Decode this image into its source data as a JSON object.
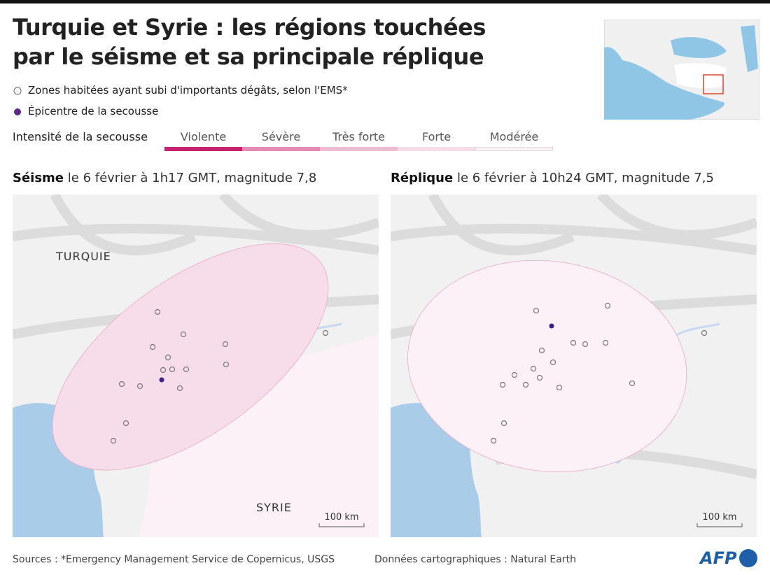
{
  "header": {
    "title_lines": [
      "Turquie et Syrie : les régions touchées",
      "par le séisme et sa principale réplique"
    ]
  },
  "legend": {
    "damaged_zones": "Zones habitées ayant subi d'importants dégâts, selon l'EMS*",
    "epicenter": "Épicentre de la secousse",
    "intensity_title": "Intensité de la secousse",
    "intensity_levels": [
      {
        "label": "Violente",
        "color": "#c8226e"
      },
      {
        "label": "Sévère",
        "color": "#e48ab4"
      },
      {
        "label": "Très forte",
        "color": "#efbcd4"
      },
      {
        "label": "Forte",
        "color": "#f6dde9"
      },
      {
        "label": "Modérée",
        "color": "#fbf1f6"
      }
    ]
  },
  "maps": [
    {
      "heading_bold": "Séisme",
      "heading_rest": "le 6 février à 1h17 GMT, magnitude 7,8",
      "labels": [
        "TURQUIE",
        "SYRIE"
      ],
      "scale": "100 km"
    },
    {
      "heading_bold": "Réplique",
      "heading_rest": "le 6 février à 10h24 GMT, magnitude 7,5",
      "scale": "100 km"
    }
  ],
  "footer": {
    "sources": "Sources : *Emergency Management Service de Copernicus, USGS",
    "cartography": "Données cartographiques : Natural Earth",
    "logo": "AFP"
  }
}
